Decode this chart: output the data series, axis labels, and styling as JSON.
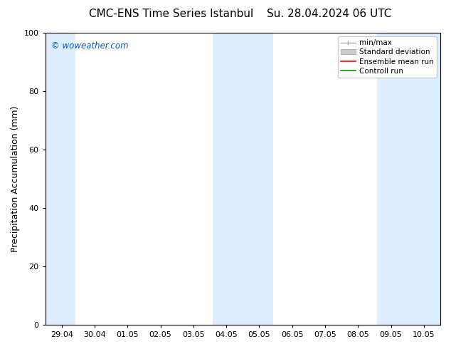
{
  "title_left": "CMC-ENS Time Series Istanbul",
  "title_right": "Su. 28.04.2024 06 UTC",
  "ylabel": "Precipitation Accumulation (mm)",
  "ylim": [
    0,
    100
  ],
  "yticks": [
    0,
    20,
    40,
    60,
    80,
    100
  ],
  "xtick_labels": [
    "29.04",
    "30.04",
    "01.05",
    "02.05",
    "03.05",
    "04.05",
    "05.05",
    "06.05",
    "07.05",
    "08.05",
    "09.05",
    "10.05"
  ],
  "shaded_color": "#ddeeff",
  "watermark_text": "© woweather.com",
  "watermark_color": "#0055cc",
  "legend_labels": [
    "min/max",
    "Standard deviation",
    "Ensemble mean run",
    "Controll run"
  ],
  "legend_colors_line": [
    "#aaaaaa",
    "#cccccc",
    "#ff0000",
    "#009900"
  ],
  "background_color": "#ffffff",
  "title_fontsize": 11,
  "tick_fontsize": 8,
  "ylabel_fontsize": 9,
  "legend_fontsize": 7.5
}
